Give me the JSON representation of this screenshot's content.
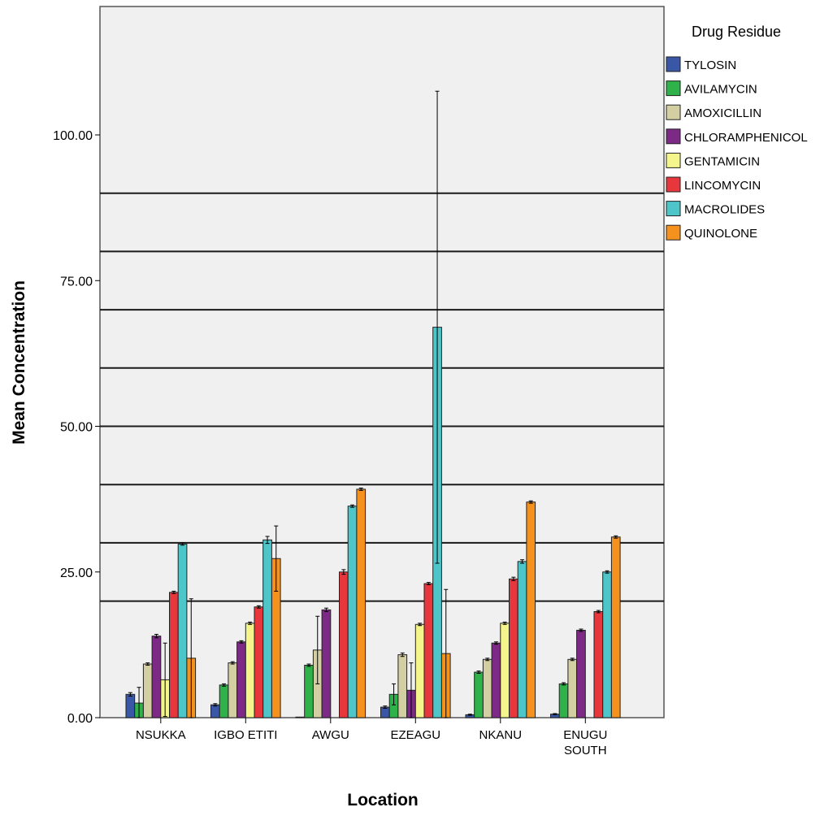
{
  "chart_data": {
    "type": "bar",
    "title": "",
    "xlabel": "Location",
    "ylabel": "Mean Concentration",
    "ylim": [
      0,
      120
    ],
    "yticks": [
      "0.00",
      "25.00",
      "50.00",
      "75.00",
      "100.00"
    ],
    "ytick_values": [
      0,
      25,
      50,
      75,
      100
    ],
    "reference_lines": [
      20,
      30,
      40,
      50,
      60,
      70,
      80,
      90
    ],
    "grid": false,
    "legend": {
      "title": "Drug Residue",
      "position": "right"
    },
    "categories": [
      {
        "label": [
          "NSUKKA"
        ]
      },
      {
        "label": [
          "IGBO ETITI"
        ]
      },
      {
        "label": [
          "AWGU"
        ]
      },
      {
        "label": [
          "EZEAGU"
        ]
      },
      {
        "label": [
          "NKANU"
        ]
      },
      {
        "label": [
          "ENUGU",
          "SOUTH"
        ]
      }
    ],
    "series": [
      {
        "name": "TYLOSIN",
        "color": "#3a57a7",
        "values": [
          4.0,
          2.2,
          0.1,
          1.8,
          0.5,
          0.6
        ],
        "error": [
          0.3,
          0.2,
          0.0,
          0.2,
          0.1,
          0.1
        ]
      },
      {
        "name": "AVILAMYCIN",
        "color": "#2fb24a",
        "values": [
          2.5,
          5.6,
          9.0,
          4.0,
          7.8,
          5.8
        ],
        "error": [
          2.7,
          0.2,
          0.2,
          1.8,
          0.2,
          0.2
        ]
      },
      {
        "name": "AMOXICILLIN",
        "color": "#d4cfa3",
        "values": [
          9.2,
          9.4,
          11.6,
          10.8,
          10.0,
          10.0
        ],
        "error": [
          0.2,
          0.2,
          5.8,
          0.3,
          0.2,
          0.2
        ]
      },
      {
        "name": "CHLORAMPHENICOL",
        "color": "#7d2a86",
        "values": [
          14.0,
          13.0,
          18.5,
          4.7,
          12.8,
          15.0
        ],
        "error": [
          0.3,
          0.2,
          0.3,
          4.7,
          0.2,
          0.2
        ]
      },
      {
        "name": "GENTAMICIN",
        "color": "#f4f58a",
        "values": [
          6.5,
          16.2,
          0,
          16.0,
          16.2,
          0
        ],
        "error": [
          6.3,
          0.2,
          0,
          0.2,
          0.2,
          0
        ]
      },
      {
        "name": "LINCOMYCIN",
        "color": "#e8363d",
        "values": [
          21.5,
          19.0,
          25.0,
          23.0,
          23.8,
          18.2
        ],
        "error": [
          0.2,
          0.2,
          0.4,
          0.2,
          0.3,
          0.2
        ]
      },
      {
        "name": "MACROLIDES",
        "color": "#4ec6c9",
        "values": [
          29.8,
          30.5,
          36.3,
          67.0,
          26.8,
          25.0
        ],
        "error": [
          0.2,
          0.6,
          0.2,
          40.5,
          0.3,
          0.2
        ]
      },
      {
        "name": "QUINOLONE",
        "color": "#f5921e",
        "values": [
          10.2,
          27.3,
          39.2,
          11.0,
          37.0,
          31.0
        ],
        "error": [
          10.2,
          5.6,
          0.2,
          11.0,
          0.2,
          0.2
        ]
      }
    ]
  }
}
